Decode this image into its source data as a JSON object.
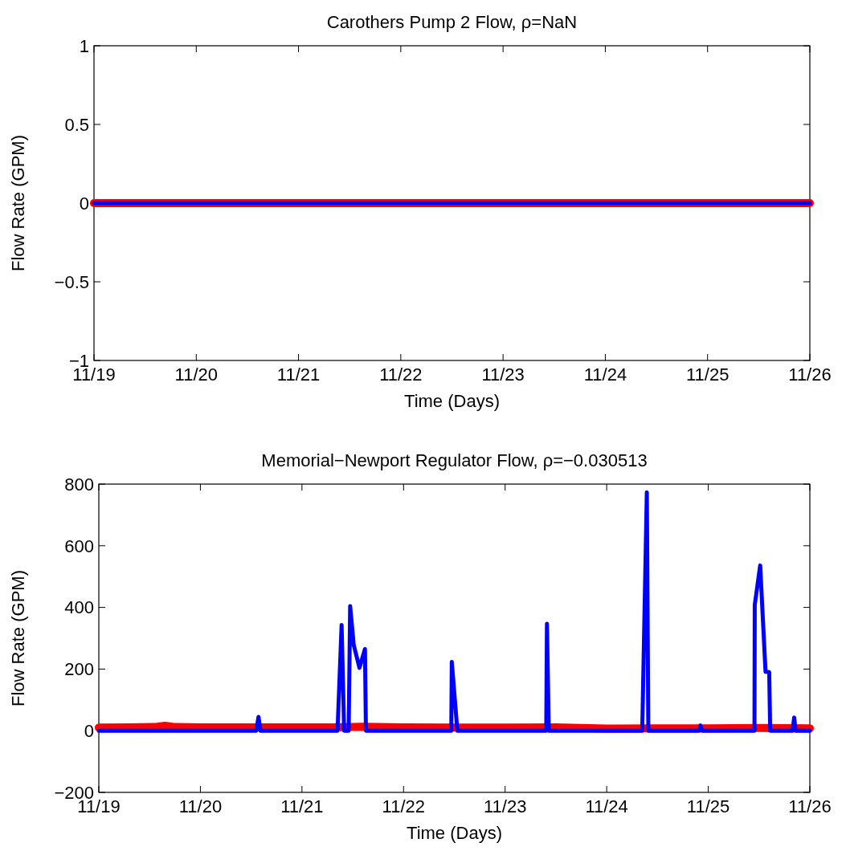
{
  "chart_data": [
    {
      "type": "line",
      "title": "Carothers Pump 2 Flow, ρ=NaN",
      "xlabel": "Time (Days)",
      "ylabel": "Flow Rate (GPM)",
      "xlim": [
        "--11-19",
        "--11-26"
      ],
      "xticks": [
        {
          "value": "--11-19",
          "label": "11/19"
        },
        {
          "value": "--11-20",
          "label": "11/20"
        },
        {
          "value": "--11-21",
          "label": "11/21"
        },
        {
          "value": "--11-22",
          "label": "11/22"
        },
        {
          "value": "--11-23",
          "label": "11/23"
        },
        {
          "value": "--11-24",
          "label": "11/24"
        },
        {
          "value": "--11-25",
          "label": "11/25"
        },
        {
          "value": "--11-26",
          "label": "11/26"
        }
      ],
      "ylim": [
        -1,
        1
      ],
      "yticks": [
        {
          "value": -1,
          "label": "−1"
        },
        {
          "value": -0.5,
          "label": "−0.5"
        },
        0,
        0.5,
        1
      ],
      "grid": false,
      "line_style": "solid",
      "series": [
        {
          "color": "#ff0000",
          "x": [
            "--11-19T00:00",
            "--11-26T00:00"
          ],
          "values": [
            0,
            0
          ]
        },
        {
          "color": "#0000ff",
          "x": [
            "--11-19T00:00",
            "--11-26T00:00"
          ],
          "values": [
            0,
            0
          ]
        }
      ]
    },
    {
      "type": "line",
      "title": "Memorial−Newport Regulator Flow, ρ=−0.030513",
      "xlabel": "Time (Days)",
      "ylabel": "Flow Rate (GPM)",
      "xlim": [
        "--11-19",
        "--11-26"
      ],
      "xticks": [
        {
          "value": "--11-19",
          "label": "11/19"
        },
        {
          "value": "--11-20",
          "label": "11/20"
        },
        {
          "value": "--11-21",
          "label": "11/21"
        },
        {
          "value": "--11-22",
          "label": "11/22"
        },
        {
          "value": "--11-23",
          "label": "11/23"
        },
        {
          "value": "--11-24",
          "label": "11/24"
        },
        {
          "value": "--11-25",
          "label": "11/25"
        },
        {
          "value": "--11-26",
          "label": "11/26"
        }
      ],
      "ylim": [
        -200,
        800
      ],
      "yticks": [
        {
          "value": -200,
          "label": "−200"
        },
        0,
        200,
        400,
        600,
        800
      ],
      "grid": false,
      "line_style": "solid",
      "series": [
        {
          "color": "#ff0000",
          "x": [
            "--11-19T00:00",
            "--11-19T07:12",
            "--11-19T13:12",
            "--11-19T15:36",
            "--11-19T18:00",
            "--11-20T00:00",
            "--11-20T12:00",
            "--11-21T00:00",
            "--11-21T07:12",
            "--11-21T14:24",
            "--11-22T00:00",
            "--11-22T12:00",
            "--11-23T00:00",
            "--11-23T12:00",
            "--11-24T00:00",
            "--11-24T12:00",
            "--11-25T00:00",
            "--11-25T12:00",
            "--11-26T00:00"
          ],
          "values": [
            10,
            11,
            12,
            16,
            12,
            11,
            11,
            11,
            11,
            13,
            11,
            10,
            10,
            11,
            7,
            8,
            8,
            9,
            8
          ]
        },
        {
          "color": "#0000ff",
          "x": [
            "--11-19T00:00",
            "--11-20T13:12",
            "--11-20T13:44",
            "--11-20T14:10",
            "--11-21T08:24",
            "--11-21T09:22",
            "--11-21T09:58",
            "--11-21T11:02",
            "--11-21T11:23",
            "--11-21T12:14",
            "--11-21T13:35",
            "--11-21T14:53",
            "--11-21T15:07",
            "--11-22T11:17",
            "--11-22T11:24",
            "--11-22T12:43",
            "--11-23T09:43",
            "--11-23T09:53",
            "--11-23T10:19",
            "--11-24T08:24",
            "--11-24T09:29",
            "--11-24T09:50",
            "--11-24T21:50",
            "--11-24T22:09",
            "--11-24T22:34",
            "--11-25T10:55",
            "--11-25T10:59",
            "--11-25T12:16",
            "--11-25T13:32",
            "--11-25T14:24",
            "--11-25T14:38",
            "--11-25T19:55",
            "--11-25T20:18",
            "--11-25T20:38",
            "--11-26T00:00"
          ],
          "values": [
            0,
            0,
            45,
            0,
            0,
            343,
            0,
            0,
            404,
            278,
            204,
            265,
            0,
            0,
            223,
            0,
            0,
            347,
            0,
            0,
            773,
            0,
            0,
            17,
            0,
            0,
            408,
            536,
            191,
            190,
            0,
            0,
            43,
            0,
            0
          ]
        }
      ]
    }
  ]
}
